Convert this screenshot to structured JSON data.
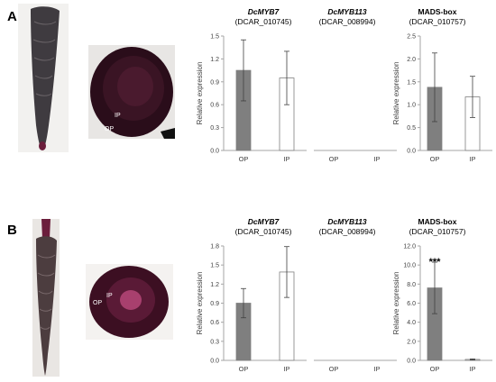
{
  "panels": [
    {
      "letter": "A",
      "labels": {
        "ip": "IP",
        "op": "OP"
      },
      "charts": [
        {
          "gene": "DcMYB7",
          "gene_id": "(DCAR_010745)",
          "italic": true,
          "ylabel": "Relative expression",
          "marker": ""
        },
        {
          "gene": "DcMYB113",
          "gene_id": "(DCAR_008994)",
          "italic": true,
          "ylabel": "",
          "marker": ""
        },
        {
          "gene": "MADS-box",
          "gene_id": "(DCAR_010757)",
          "italic": false,
          "ylabel": "Relative expression",
          "marker": ""
        }
      ]
    },
    {
      "letter": "B",
      "labels": {
        "ip": "IP",
        "op": "OP"
      },
      "charts": [
        {
          "gene": "DcMYB7",
          "gene_id": "(DCAR_010745)",
          "italic": true,
          "ylabel": "Relative expression",
          "marker": ""
        },
        {
          "gene": "DcMYB113",
          "gene_id": "(DCAR_008994)",
          "italic": true,
          "ylabel": "",
          "marker": ""
        },
        {
          "gene": "MADS-box",
          "gene_id": "(DCAR_010757)",
          "italic": false,
          "ylabel": "Relative expression",
          "marker": "***"
        }
      ]
    }
  ],
  "colors": {
    "op_bar": "#7f7f7f",
    "ip_bar": "#ffffff",
    "axis": "#a6a6a6",
    "error_bar": "#404040"
  },
  "chart_data": [
    {
      "type": "bar",
      "panel": "A",
      "title": "DcMYB7 (DCAR_010745)",
      "ylabel": "Relative expression",
      "categories": [
        "OP",
        "IP"
      ],
      "values": [
        1.05,
        0.95
      ],
      "errors": [
        0.4,
        0.35
      ],
      "ylim": [
        0,
        1.5
      ],
      "yticks": [
        "0.0",
        "0.3",
        "0.6",
        "0.9",
        "1.2",
        "1.5"
      ]
    },
    {
      "type": "bar",
      "panel": "A",
      "title": "DcMYB113 (DCAR_008994)",
      "ylabel": "",
      "categories": [
        "OP",
        "IP"
      ],
      "values": [
        0,
        0
      ],
      "errors": [
        0,
        0
      ],
      "ylim": [
        0,
        1.5
      ],
      "yticks": []
    },
    {
      "type": "bar",
      "panel": "A",
      "title": "MADS-box (DCAR_010757)",
      "ylabel": "Relative expression",
      "categories": [
        "OP",
        "IP"
      ],
      "values": [
        1.38,
        1.17
      ],
      "errors": [
        0.75,
        0.45
      ],
      "ylim": [
        0,
        2.5
      ],
      "yticks": [
        "0.0",
        "0.5",
        "1.0",
        "1.5",
        "2.0",
        "2.5"
      ]
    },
    {
      "type": "bar",
      "panel": "B",
      "title": "DcMYB7 (DCAR_010745)",
      "ylabel": "Relative expression",
      "categories": [
        "OP",
        "IP"
      ],
      "values": [
        0.9,
        1.39
      ],
      "errors": [
        0.23,
        0.4
      ],
      "ylim": [
        0,
        1.8
      ],
      "yticks": [
        "0.0",
        "0.3",
        "0.6",
        "0.9",
        "1.2",
        "1.5",
        "1.8"
      ]
    },
    {
      "type": "bar",
      "panel": "B",
      "title": "DcMYB113 (DCAR_008994)",
      "ylabel": "",
      "categories": [
        "OP",
        "IP"
      ],
      "values": [
        0,
        0
      ],
      "errors": [
        0,
        0
      ],
      "ylim": [
        0,
        1.8
      ],
      "yticks": []
    },
    {
      "type": "bar",
      "panel": "B",
      "title": "MADS-box (DCAR_010757)",
      "ylabel": "Relative expression",
      "categories": [
        "OP",
        "IP"
      ],
      "values": [
        7.6,
        0.1
      ],
      "errors": [
        2.7,
        0.05
      ],
      "ylim": [
        0,
        12
      ],
      "yticks": [
        "0.0",
        "2.0",
        "4.0",
        "6.0",
        "8.0",
        "10.0",
        "12.0"
      ]
    }
  ]
}
